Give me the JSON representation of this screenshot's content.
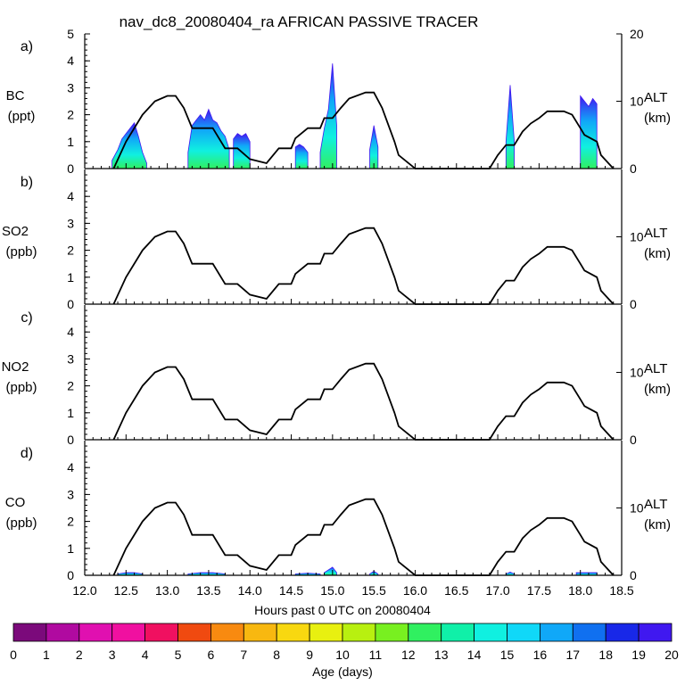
{
  "title": "nav_dc8_20080404_ra AFRICAN PASSIVE TRACER",
  "xlabel": "Hours past 0 UTC on 20080404",
  "colorbar": {
    "label": "Age (days)",
    "ticks": [
      "0",
      "1",
      "2",
      "3",
      "4",
      "5",
      "6",
      "7",
      "8",
      "9",
      "10",
      "11",
      "12",
      "13",
      "14",
      "15",
      "16",
      "17",
      "18",
      "19",
      "20"
    ],
    "colors": [
      "#7b0a7b",
      "#b00aa0",
      "#e010b0",
      "#f010a0",
      "#f01060",
      "#f04a10",
      "#f88a10",
      "#f8b810",
      "#f8d810",
      "#e8f010",
      "#b8f010",
      "#78f020",
      "#30f060",
      "#10f0a8",
      "#10f0e0",
      "#10d8f8",
      "#10a8f8",
      "#1070f0",
      "#1828e8",
      "#4018f0"
    ]
  },
  "chart_data": [
    {
      "panel": "a)",
      "type": "area",
      "species": "BC",
      "unit": "(ppt)",
      "ylim": [
        0,
        5
      ],
      "yticks": [
        "0",
        "1",
        "2",
        "3",
        "4",
        "5"
      ],
      "y2label": "ALT",
      "y2unit": "(km)",
      "y2lim": [
        0,
        20
      ],
      "y2ticks": [
        "0",
        "10",
        "20"
      ],
      "series": [
        {
          "name": "BC tracer",
          "segments": [
            {
              "x": [
                12.33,
                12.4,
                12.45,
                12.5,
                12.55,
                12.6,
                12.65,
                12.7,
                12.75
              ],
              "y": [
                0.3,
                0.7,
                1.1,
                1.3,
                1.5,
                1.7,
                1.2,
                0.6,
                0.2
              ]
            },
            {
              "x": [
                13.25,
                13.3,
                13.35,
                13.4,
                13.45,
                13.5,
                13.55,
                13.6,
                13.65,
                13.7,
                13.75
              ],
              "y": [
                0.6,
                1.6,
                1.8,
                2.0,
                1.8,
                2.2,
                1.8,
                1.7,
                1.4,
                1.2,
                0.7
              ]
            },
            {
              "x": [
                13.8,
                13.85,
                13.9,
                13.95,
                14.0
              ],
              "y": [
                1.1,
                1.3,
                1.2,
                1.3,
                1.0
              ]
            },
            {
              "x": [
                14.55,
                14.6,
                14.65,
                14.7
              ],
              "y": [
                0.8,
                0.9,
                0.8,
                0.6
              ]
            },
            {
              "x": [
                14.85,
                14.9,
                14.95,
                15.0,
                15.05
              ],
              "y": [
                0.6,
                1.5,
                2.2,
                3.9,
                1.6
              ]
            },
            {
              "x": [
                15.45,
                15.5,
                15.55
              ],
              "y": [
                0.7,
                1.6,
                0.8
              ]
            },
            {
              "x": [
                17.1,
                17.15,
                17.2
              ],
              "y": [
                1.0,
                3.1,
                1.0
              ]
            },
            {
              "x": [
                18.0,
                18.05,
                18.1,
                18.15,
                18.2
              ],
              "y": [
                2.7,
                2.5,
                2.3,
                2.6,
                2.4
              ]
            }
          ]
        },
        {
          "name": "Altitude",
          "axis": "y2",
          "x": [
            12.35,
            12.5,
            12.7,
            12.85,
            13.0,
            13.1,
            13.2,
            13.3,
            13.5,
            13.55,
            13.7,
            13.8,
            13.85,
            14.0,
            14.2,
            14.35,
            14.5,
            14.55,
            14.7,
            14.85,
            14.9,
            15.0,
            15.1,
            15.2,
            15.4,
            15.5,
            15.6,
            15.75,
            15.8,
            16.0,
            16.5,
            16.8,
            16.9,
            17.0,
            17.1,
            17.2,
            17.3,
            17.4,
            17.5,
            17.6,
            17.8,
            17.9,
            18.0,
            18.05,
            18.2,
            18.25,
            18.4
          ],
          "y": [
            0,
            4,
            8,
            10,
            10.8,
            10.8,
            9,
            6,
            6,
            6,
            3,
            3,
            3,
            1.4,
            0.8,
            3,
            3,
            4.5,
            6,
            6,
            7.5,
            7.5,
            9,
            10.4,
            11.3,
            11.3,
            9,
            4,
            2,
            0,
            0,
            0,
            0,
            2,
            3.5,
            3.5,
            5.5,
            6.7,
            7.5,
            8.5,
            8.5,
            8,
            6,
            5,
            4,
            2,
            0
          ]
        }
      ]
    },
    {
      "panel": "b)",
      "type": "line",
      "species": "SO2",
      "unit": "(ppb)",
      "ylim": [
        0,
        5
      ],
      "yticks": [
        "0",
        "1",
        "2",
        "3",
        "4"
      ],
      "y2label": "ALT",
      "y2unit": "(km)",
      "y2lim": [
        0,
        20
      ],
      "y2ticks": [
        "0",
        "10"
      ],
      "series": [
        {
          "name": "Altitude",
          "axis": "y2",
          "x": [
            12.35,
            12.5,
            12.7,
            12.85,
            13.0,
            13.1,
            13.2,
            13.3,
            13.5,
            13.55,
            13.7,
            13.8,
            13.85,
            14.0,
            14.2,
            14.35,
            14.5,
            14.55,
            14.7,
            14.85,
            14.9,
            15.0,
            15.1,
            15.2,
            15.4,
            15.5,
            15.6,
            15.75,
            15.8,
            16.0,
            16.5,
            16.8,
            16.9,
            17.0,
            17.1,
            17.2,
            17.3,
            17.4,
            17.5,
            17.6,
            17.8,
            17.9,
            18.0,
            18.05,
            18.2,
            18.25,
            18.4
          ],
          "y": [
            0,
            4,
            8,
            10,
            10.8,
            10.8,
            9,
            6,
            6,
            6,
            3,
            3,
            3,
            1.4,
            0.8,
            3,
            3,
            4.5,
            6,
            6,
            7.5,
            7.5,
            9,
            10.4,
            11.3,
            11.3,
            9,
            4,
            2,
            0,
            0,
            0,
            0,
            2,
            3.5,
            3.5,
            5.5,
            6.7,
            7.5,
            8.5,
            8.5,
            8,
            6,
            5,
            4,
            2,
            0
          ]
        }
      ]
    },
    {
      "panel": "c)",
      "type": "line",
      "species": "NO2",
      "unit": "(ppb)",
      "ylim": [
        0,
        5
      ],
      "yticks": [
        "0",
        "1",
        "2",
        "3",
        "4"
      ],
      "y2label": "ALT",
      "y2unit": "(km)",
      "y2lim": [
        0,
        20
      ],
      "y2ticks": [
        "0",
        "10"
      ],
      "series": [
        {
          "name": "Altitude",
          "axis": "y2",
          "x": [
            12.35,
            12.5,
            12.7,
            12.85,
            13.0,
            13.1,
            13.2,
            13.3,
            13.5,
            13.55,
            13.7,
            13.8,
            13.85,
            14.0,
            14.2,
            14.35,
            14.5,
            14.55,
            14.7,
            14.85,
            14.9,
            15.0,
            15.1,
            15.2,
            15.4,
            15.5,
            15.6,
            15.75,
            15.8,
            16.0,
            16.5,
            16.8,
            16.9,
            17.0,
            17.1,
            17.2,
            17.3,
            17.4,
            17.5,
            17.6,
            17.8,
            17.9,
            18.0,
            18.05,
            18.2,
            18.25,
            18.4
          ],
          "y": [
            0,
            4,
            8,
            10,
            10.8,
            10.8,
            9,
            6,
            6,
            6,
            3,
            3,
            3,
            1.4,
            0.8,
            3,
            3,
            4.5,
            6,
            6,
            7.5,
            7.5,
            9,
            10.4,
            11.3,
            11.3,
            9,
            4,
            2,
            0,
            0,
            0,
            0,
            2,
            3.5,
            3.5,
            5.5,
            6.7,
            7.5,
            8.5,
            8.5,
            8,
            6,
            5,
            4,
            2,
            0
          ]
        }
      ]
    },
    {
      "panel": "d)",
      "type": "area",
      "species": "CO",
      "unit": "(ppb)",
      "ylim": [
        0,
        5
      ],
      "yticks": [
        "0",
        "1",
        "2",
        "3",
        "4"
      ],
      "y2label": "ALT",
      "y2unit": "(km)",
      "y2lim": [
        0,
        20
      ],
      "y2ticks": [
        "0",
        "10"
      ],
      "series": [
        {
          "name": "CO tracer",
          "segments": [
            {
              "x": [
                12.4,
                12.5,
                12.6,
                12.7
              ],
              "y": [
                0.05,
                0.1,
                0.1,
                0.05
              ]
            },
            {
              "x": [
                13.25,
                13.4,
                13.55,
                13.7
              ],
              "y": [
                0.05,
                0.1,
                0.1,
                0.05
              ]
            },
            {
              "x": [
                14.55,
                14.7,
                14.85
              ],
              "y": [
                0.05,
                0.08,
                0.05
              ]
            },
            {
              "x": [
                14.9,
                14.95,
                15.0,
                15.05
              ],
              "y": [
                0.1,
                0.2,
                0.3,
                0.1
              ]
            },
            {
              "x": [
                15.45,
                15.5,
                15.55
              ],
              "y": [
                0.05,
                0.15,
                0.05
              ]
            },
            {
              "x": [
                17.1,
                17.15,
                17.2
              ],
              "y": [
                0.05,
                0.12,
                0.05
              ]
            },
            {
              "x": [
                17.95,
                18.05,
                18.2
              ],
              "y": [
                0.1,
                0.1,
                0.1
              ]
            }
          ]
        },
        {
          "name": "Altitude",
          "axis": "y2",
          "x": [
            12.35,
            12.5,
            12.7,
            12.85,
            13.0,
            13.1,
            13.2,
            13.3,
            13.5,
            13.55,
            13.7,
            13.8,
            13.85,
            14.0,
            14.2,
            14.35,
            14.5,
            14.55,
            14.7,
            14.85,
            14.9,
            15.0,
            15.1,
            15.2,
            15.4,
            15.5,
            15.6,
            15.75,
            15.8,
            16.0,
            16.5,
            16.8,
            16.9,
            17.0,
            17.1,
            17.2,
            17.3,
            17.4,
            17.5,
            17.6,
            17.8,
            17.9,
            18.0,
            18.05,
            18.2,
            18.25,
            18.4
          ],
          "y": [
            0,
            4,
            8,
            10,
            10.8,
            10.8,
            9,
            6,
            6,
            6,
            3,
            3,
            3,
            1.4,
            0.8,
            3,
            3,
            4.5,
            6,
            6,
            7.5,
            7.5,
            9,
            10.4,
            11.3,
            11.3,
            9,
            4,
            2,
            0,
            0,
            0,
            0,
            2,
            3.5,
            3.5,
            5.5,
            6.7,
            7.5,
            8.5,
            8.5,
            8,
            6,
            5,
            4,
            2,
            0
          ]
        }
      ]
    }
  ],
  "xaxis": {
    "xlim": [
      12.0,
      18.5
    ],
    "ticks": [
      12.0,
      12.5,
      13.0,
      13.5,
      14.0,
      14.5,
      15.0,
      15.5,
      16.0,
      16.5,
      17.0,
      17.5,
      18.0,
      18.5
    ],
    "ticklabels": [
      "12.0",
      "12.5",
      "13.0",
      "13.5",
      "14.0",
      "14.5",
      "15.0",
      "15.5",
      "16.0",
      "16.5",
      "17.0",
      "17.5",
      "18.0",
      "18.5"
    ]
  }
}
